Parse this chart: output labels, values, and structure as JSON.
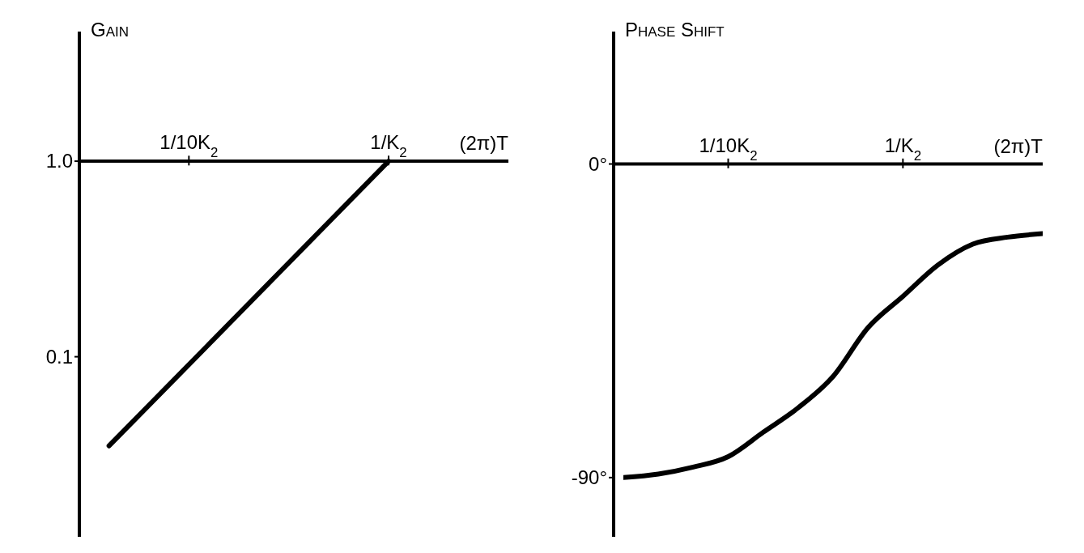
{
  "chart_data": [
    {
      "type": "line",
      "ylabel": "Gain",
      "xlabel": "(2π)T",
      "log": "y",
      "ylim": [
        0.012,
        4.6
      ],
      "categories": [
        null,
        null,
        null,
        null,
        null,
        "1/10K$_{2}$",
        null,
        null,
        null,
        null,
        null,
        null,
        null,
        null,
        null,
        "1/K$_{2}$",
        null,
        null,
        null,
        null,
        null,
        null
      ],
      "yticks": [
        {
          "value": 0.1,
          "label": "0.1"
        },
        {
          "value": 1,
          "label": "1.0"
        }
      ],
      "series": [
        {
          "color": "#000000",
          "values": [
            null,
            0.035,
            null,
            null,
            null,
            null,
            null,
            null,
            null,
            null,
            null,
            null,
            null,
            null,
            null,
            1,
            null,
            null,
            null,
            null,
            null,
            null
          ]
        }
      ]
    },
    {
      "type": "line",
      "ylabel": "Phase Shift",
      "xlabel": "(2π)T",
      "ylim": [
        -107,
        38
      ],
      "categories": [
        null,
        null,
        null,
        null,
        null,
        null,
        "1/10K$_{2}$",
        null,
        null,
        null,
        null,
        null,
        null,
        null,
        null,
        null,
        "1/K$_{2}$",
        null,
        null,
        null,
        null,
        null,
        null,
        null,
        null
      ],
      "yticks": [
        {
          "value": -90,
          "label": "-90°"
        },
        {
          "value": 0,
          "label": "0°"
        }
      ],
      "series": [
        {
          "color": "#000000",
          "values": [
            -90,
            null,
            -89,
            null,
            -87,
            null,
            -84,
            null,
            -77,
            null,
            -70,
            null,
            -61,
            null,
            -47,
            null,
            -38,
            null,
            -29,
            null,
            -23,
            null,
            -21,
            null,
            -20
          ]
        }
      ]
    }
  ]
}
